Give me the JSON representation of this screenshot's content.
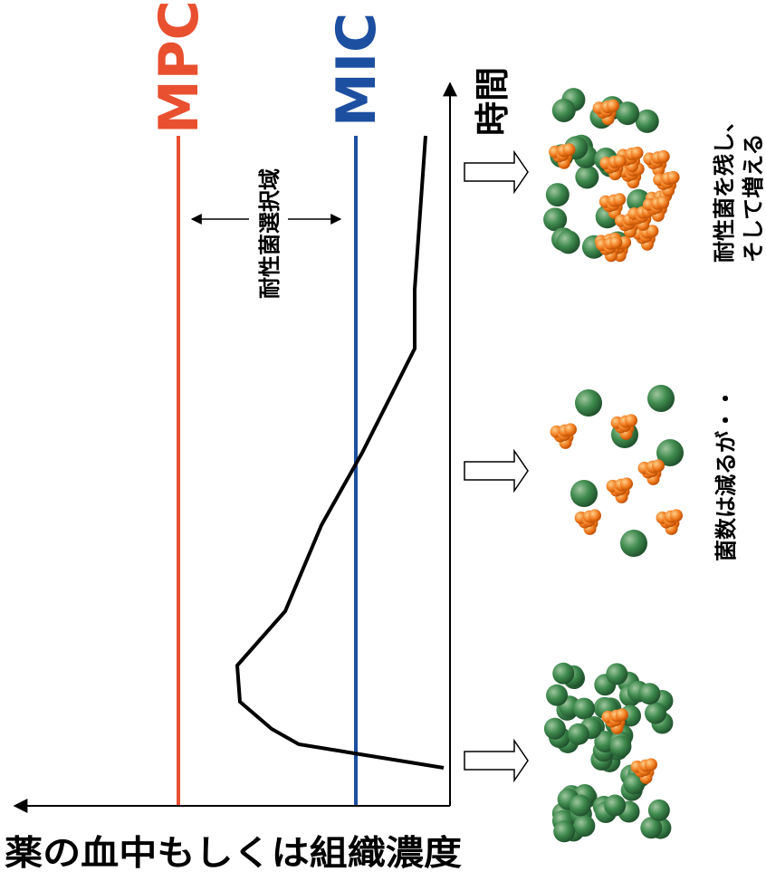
{
  "labels": {
    "mpc": "MPC",
    "mic": "MIC",
    "time_axis": "時間",
    "concentration_axis": "薬の血中もしくは組織濃度",
    "selection_window": "耐性菌選択域"
  },
  "stages": [
    {
      "caption_lines": [
        "耐性菌を残し、",
        "そして増える"
      ]
    },
    {
      "caption_lines": [
        "菌数は減るが・・"
      ]
    }
  ]
}
